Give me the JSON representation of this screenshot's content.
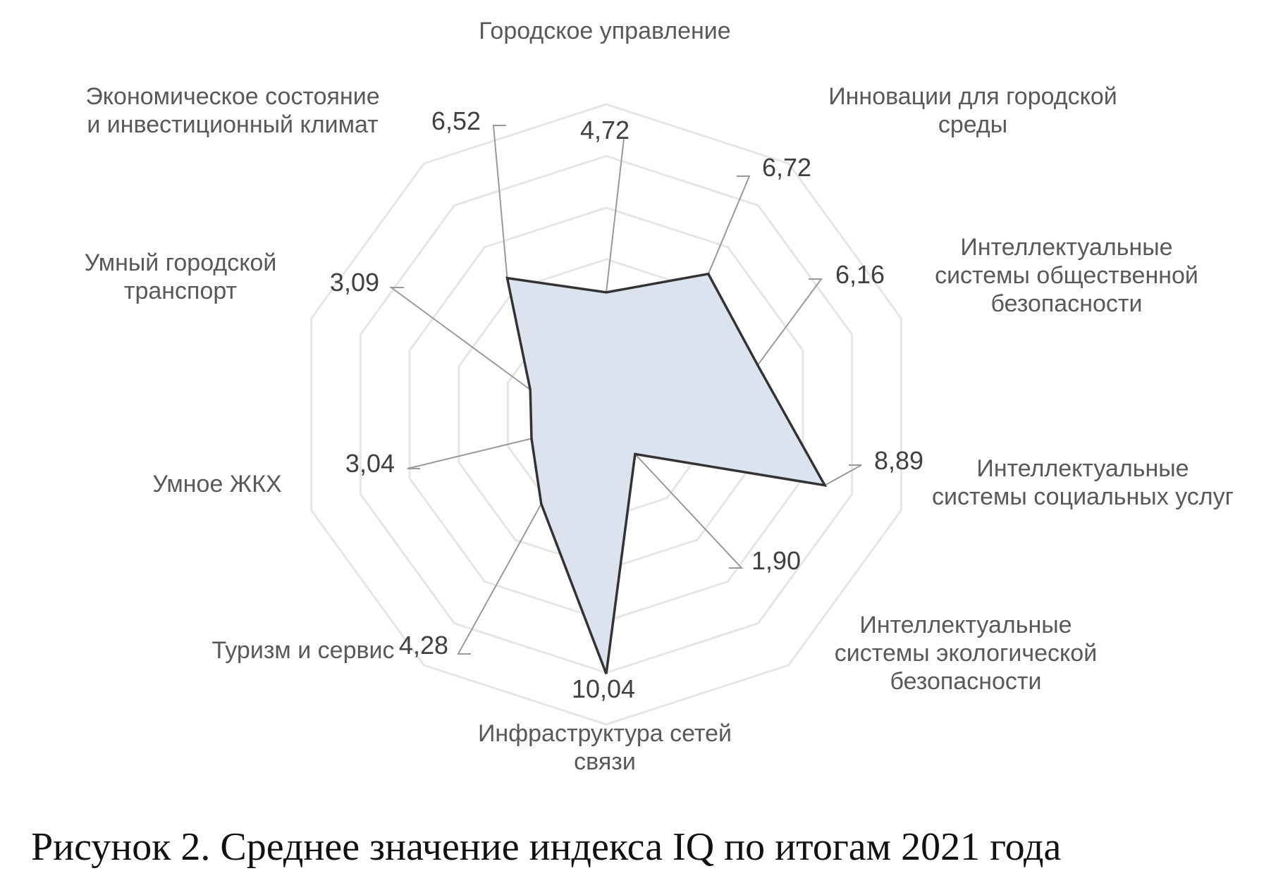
{
  "chart_data": {
    "type": "radar",
    "categories": [
      [
        "Городское управление"
      ],
      [
        "Инновации для городской",
        "среды"
      ],
      [
        "Интеллектуальные",
        "системы общественной",
        "безопасности"
      ],
      [
        "Интеллектуальные",
        "системы социальных услуг"
      ],
      [
        "Интеллектуальные",
        "системы экологической",
        "безопасности"
      ],
      [
        "Инфраструктура сетей",
        "связи"
      ],
      [
        "Туризм и сервис"
      ],
      [
        "Умное ЖКХ"
      ],
      [
        "Умный городской",
        "транспорт"
      ],
      [
        "Экономическое состояние",
        "и инвестиционный климат"
      ]
    ],
    "values": [
      4.72,
      6.72,
      6.16,
      8.89,
      1.9,
      10.04,
      4.28,
      3.04,
      3.09,
      6.52
    ],
    "value_labels": [
      "4,72",
      "6,72",
      "6,16",
      "8,89",
      "1,90",
      "10,04",
      "4,28",
      "3,04",
      "3,09",
      "6,52"
    ],
    "range": [
      0,
      12
    ],
    "rings": 6,
    "fill_color": "#dce3ee",
    "line_color": "#333333",
    "grid": true
  },
  "caption": "Рисунок 2. Среднее значение индекса IQ по итогам 2021 года"
}
